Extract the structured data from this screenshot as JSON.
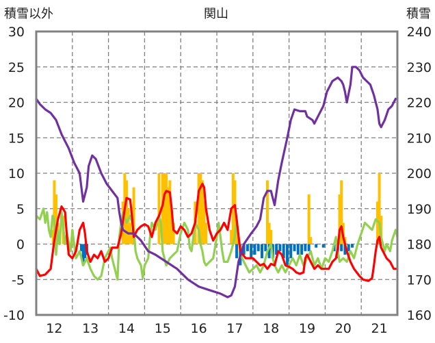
{
  "chart_data": {
    "type": "line",
    "title": "関山",
    "ylabel_left": "積雪以外",
    "ylabel_right": "積雪",
    "ylim_left": [
      -10,
      30
    ],
    "ylim_right": [
      160,
      240
    ],
    "yticks_left": [
      "30",
      "25",
      "20",
      "15",
      "10",
      "5",
      "0",
      "-5",
      "-10"
    ],
    "yticks_right": [
      "240",
      "230",
      "220",
      "210",
      "200",
      "190",
      "180",
      "170",
      "160"
    ],
    "xlim": [
      11.5,
      21.5
    ],
    "xticks": [
      "12",
      "13",
      "14",
      "15",
      "16",
      "17",
      "18",
      "19",
      "20",
      "21"
    ],
    "grid": true,
    "colors": {
      "snow_depth": "#7030a0",
      "temperature": "#ff0000",
      "green_series": "#92d050",
      "precip_bars": "#ffc000",
      "snow_change_bars": "#0070c0",
      "border": "#808080",
      "grid": "#7f7f7f"
    },
    "snow_depth": [
      [
        11.5,
        221
      ],
      [
        11.6,
        219.5
      ],
      [
        11.75,
        218
      ],
      [
        11.9,
        217
      ],
      [
        12.05,
        215
      ],
      [
        12.2,
        211
      ],
      [
        12.4,
        207
      ],
      [
        12.55,
        203
      ],
      [
        12.7,
        200
      ],
      [
        12.75,
        196
      ],
      [
        12.8,
        192
      ],
      [
        12.9,
        196
      ],
      [
        12.95,
        202
      ],
      [
        13.05,
        205
      ],
      [
        13.15,
        204
      ],
      [
        13.3,
        200
      ],
      [
        13.45,
        197
      ],
      [
        13.6,
        195
      ],
      [
        13.75,
        193
      ],
      [
        13.8,
        189
      ],
      [
        13.85,
        186
      ],
      [
        13.9,
        184
      ],
      [
        14.05,
        183
      ],
      [
        14.2,
        183
      ],
      [
        14.4,
        181
      ],
      [
        14.6,
        178
      ],
      [
        14.8,
        177
      ],
      [
        15.1,
        175
      ],
      [
        15.4,
        173
      ],
      [
        15.7,
        170
      ],
      [
        16.0,
        168
      ],
      [
        16.3,
        167
      ],
      [
        16.6,
        166
      ],
      [
        16.8,
        165
      ],
      [
        16.9,
        165.5
      ],
      [
        17.0,
        168
      ],
      [
        17.1,
        175
      ],
      [
        17.25,
        180
      ],
      [
        17.45,
        183
      ],
      [
        17.6,
        185
      ],
      [
        17.7,
        187
      ],
      [
        17.75,
        190
      ],
      [
        17.8,
        193
      ],
      [
        17.9,
        195
      ],
      [
        18.0,
        195
      ],
      [
        18.05,
        193
      ],
      [
        18.1,
        191
      ],
      [
        18.2,
        198
      ],
      [
        18.3,
        203
      ],
      [
        18.45,
        210
      ],
      [
        18.55,
        215
      ],
      [
        18.65,
        218
      ],
      [
        18.8,
        217.5
      ],
      [
        18.95,
        217.5
      ],
      [
        19.0,
        216
      ],
      [
        19.15,
        215
      ],
      [
        19.2,
        214
      ],
      [
        19.3,
        216
      ],
      [
        19.45,
        219
      ],
      [
        19.55,
        223
      ],
      [
        19.7,
        226
      ],
      [
        19.85,
        227
      ],
      [
        19.95,
        226
      ],
      [
        20.0,
        225
      ],
      [
        20.05,
        223
      ],
      [
        20.1,
        220
      ],
      [
        20.2,
        225
      ],
      [
        20.25,
        230
      ],
      [
        20.35,
        230
      ],
      [
        20.45,
        229
      ],
      [
        20.55,
        227
      ],
      [
        20.65,
        226
      ],
      [
        20.75,
        225
      ],
      [
        20.85,
        222
      ],
      [
        20.95,
        218
      ],
      [
        21.0,
        214
      ],
      [
        21.05,
        213
      ],
      [
        21.15,
        215
      ],
      [
        21.25,
        218
      ],
      [
        21.35,
        219
      ],
      [
        21.45,
        221
      ]
    ],
    "temperature": [
      [
        11.5,
        -3.5
      ],
      [
        11.6,
        -4.5
      ],
      [
        11.75,
        -4.3
      ],
      [
        11.9,
        -3.5
      ],
      [
        12.0,
        0.5
      ],
      [
        12.1,
        3.5
      ],
      [
        12.2,
        5.3
      ],
      [
        12.3,
        4.5
      ],
      [
        12.35,
        1
      ],
      [
        12.4,
        -1.5
      ],
      [
        12.5,
        -2
      ],
      [
        12.6,
        -1
      ],
      [
        12.7,
        2
      ],
      [
        12.8,
        3
      ],
      [
        12.85,
        1.5
      ],
      [
        12.9,
        -1
      ],
      [
        13.0,
        -2.5
      ],
      [
        13.1,
        -1.5
      ],
      [
        13.2,
        -2
      ],
      [
        13.3,
        -1
      ],
      [
        13.4,
        -2.5
      ],
      [
        13.5,
        -2
      ],
      [
        13.6,
        -0.5
      ],
      [
        13.75,
        -0.5
      ],
      [
        13.85,
        1.5
      ],
      [
        13.95,
        5
      ],
      [
        14.0,
        6.5
      ],
      [
        14.1,
        6.3
      ],
      [
        14.15,
        4
      ],
      [
        14.2,
        1
      ],
      [
        14.3,
        2
      ],
      [
        14.4,
        2.5
      ],
      [
        14.5,
        2.8
      ],
      [
        14.6,
        2.5
      ],
      [
        14.7,
        1
      ],
      [
        14.8,
        3
      ],
      [
        14.9,
        4
      ],
      [
        15.0,
        5.5
      ],
      [
        15.05,
        7
      ],
      [
        15.1,
        7.5
      ],
      [
        15.2,
        7.3
      ],
      [
        15.25,
        5
      ],
      [
        15.3,
        2
      ],
      [
        15.4,
        1.5
      ],
      [
        15.5,
        2.5
      ],
      [
        15.6,
        2
      ],
      [
        15.7,
        1
      ],
      [
        15.8,
        1.5
      ],
      [
        15.9,
        3
      ],
      [
        16.0,
        7.5
      ],
      [
        16.1,
        8.5
      ],
      [
        16.15,
        8
      ],
      [
        16.2,
        5
      ],
      [
        16.3,
        2
      ],
      [
        16.4,
        0.5
      ],
      [
        16.5,
        1.5
      ],
      [
        16.6,
        2
      ],
      [
        16.7,
        3
      ],
      [
        16.8,
        2
      ],
      [
        16.9,
        5
      ],
      [
        17.0,
        5.5
      ],
      [
        17.05,
        3.5
      ],
      [
        17.15,
        -1
      ],
      [
        17.3,
        -2
      ],
      [
        17.5,
        -2
      ],
      [
        17.6,
        -2.5
      ],
      [
        17.7,
        -3
      ],
      [
        17.8,
        -2.8
      ],
      [
        17.9,
        -3.5
      ],
      [
        18.0,
        -2.8
      ],
      [
        18.1,
        -3
      ],
      [
        18.2,
        -1
      ],
      [
        18.3,
        -1.5
      ],
      [
        18.4,
        -3
      ],
      [
        18.5,
        -3.2
      ],
      [
        18.6,
        -3.5
      ],
      [
        18.7,
        -4
      ],
      [
        18.8,
        -4.2
      ],
      [
        18.9,
        -4
      ],
      [
        18.95,
        -2
      ],
      [
        19.0,
        -1.5
      ],
      [
        19.1,
        -2.5
      ],
      [
        19.2,
        -3.5
      ],
      [
        19.3,
        -3
      ],
      [
        19.4,
        -3.5
      ],
      [
        19.6,
        -3.5
      ],
      [
        19.7,
        -2.5
      ],
      [
        19.8,
        -2
      ],
      [
        19.85,
        -0.5
      ],
      [
        19.9,
        2
      ],
      [
        19.95,
        2.5
      ],
      [
        20.0,
        1
      ],
      [
        20.1,
        -1
      ],
      [
        20.2,
        -2.5
      ],
      [
        20.3,
        -3.5
      ],
      [
        20.45,
        -4.5
      ],
      [
        20.55,
        -5
      ],
      [
        20.7,
        -5.2
      ],
      [
        20.8,
        -4.8
      ],
      [
        20.85,
        -3
      ],
      [
        20.9,
        -1
      ],
      [
        20.95,
        0.5
      ],
      [
        21.0,
        1
      ],
      [
        21.05,
        -0.5
      ],
      [
        21.1,
        -1
      ],
      [
        21.2,
        -2
      ],
      [
        21.3,
        -2.5
      ],
      [
        21.4,
        -3.5
      ],
      [
        21.5,
        -3.5
      ]
    ],
    "green_series": [
      [
        11.5,
        4
      ],
      [
        11.6,
        3.5
      ],
      [
        11.7,
        5
      ],
      [
        11.75,
        3
      ],
      [
        11.8,
        4.5
      ],
      [
        11.85,
        2
      ],
      [
        11.9,
        1
      ],
      [
        11.95,
        4
      ],
      [
        12.0,
        3.5
      ],
      [
        12.05,
        -1.5
      ],
      [
        12.1,
        2
      ],
      [
        12.15,
        0
      ],
      [
        12.2,
        4.5
      ],
      [
        12.3,
        0
      ],
      [
        12.35,
        1.5
      ],
      [
        12.45,
        -1
      ],
      [
        12.5,
        2
      ],
      [
        12.55,
        0
      ],
      [
        12.6,
        -2
      ],
      [
        12.7,
        -1
      ],
      [
        12.8,
        -3
      ],
      [
        12.9,
        -2
      ],
      [
        13.0,
        -3.5
      ],
      [
        13.1,
        -4.5
      ],
      [
        13.2,
        -5
      ],
      [
        13.3,
        -4.5
      ],
      [
        13.4,
        -2
      ],
      [
        13.5,
        -1
      ],
      [
        13.55,
        -0.5
      ],
      [
        13.6,
        -2
      ],
      [
        13.7,
        -4
      ],
      [
        13.75,
        -5
      ],
      [
        13.8,
        1
      ],
      [
        13.85,
        3
      ],
      [
        13.9,
        4.5
      ],
      [
        14.0,
        3
      ],
      [
        14.1,
        4
      ],
      [
        14.2,
        2
      ],
      [
        14.25,
        -1
      ],
      [
        14.3,
        -2
      ],
      [
        14.4,
        -3
      ],
      [
        14.45,
        -4.8
      ],
      [
        14.5,
        -3
      ],
      [
        14.6,
        -2
      ],
      [
        14.65,
        1
      ],
      [
        14.7,
        3
      ],
      [
        14.8,
        2
      ],
      [
        14.9,
        4
      ],
      [
        14.95,
        3
      ],
      [
        15.0,
        -1
      ],
      [
        15.05,
        -2
      ],
      [
        15.1,
        -3
      ],
      [
        15.2,
        -2
      ],
      [
        15.3,
        -1.5
      ],
      [
        15.4,
        -1
      ],
      [
        15.5,
        1.5
      ],
      [
        15.6,
        3
      ],
      [
        15.7,
        2
      ],
      [
        15.75,
        -0.5
      ],
      [
        15.8,
        -1
      ],
      [
        15.85,
        1
      ],
      [
        15.9,
        3
      ],
      [
        16.0,
        2
      ],
      [
        16.05,
        0
      ],
      [
        16.1,
        -1
      ],
      [
        16.15,
        -2.5
      ],
      [
        16.2,
        -3
      ],
      [
        16.3,
        -2.5
      ],
      [
        16.4,
        -2
      ],
      [
        16.5,
        1
      ],
      [
        16.55,
        3
      ],
      [
        16.6,
        1
      ],
      [
        16.65,
        -1
      ],
      [
        16.7,
        -2.5
      ],
      [
        16.8,
        -2.5
      ],
      [
        16.9,
        -1
      ],
      [
        17.0,
        1
      ],
      [
        17.05,
        3.5
      ],
      [
        17.1,
        1
      ],
      [
        17.2,
        -2
      ],
      [
        17.3,
        -3
      ],
      [
        17.4,
        -4
      ],
      [
        17.5,
        -3.5
      ],
      [
        17.6,
        -3
      ],
      [
        17.7,
        -4
      ],
      [
        17.8,
        -3
      ],
      [
        17.9,
        -1
      ],
      [
        18.0,
        0
      ],
      [
        18.05,
        -2
      ],
      [
        18.1,
        -3
      ],
      [
        18.2,
        -4
      ],
      [
        18.3,
        -3
      ],
      [
        18.4,
        -4
      ],
      [
        18.5,
        -3
      ],
      [
        18.6,
        -2
      ],
      [
        18.7,
        -3
      ],
      [
        18.8,
        -1.5
      ],
      [
        18.9,
        -3
      ],
      [
        19.0,
        -2
      ],
      [
        19.1,
        -1
      ],
      [
        19.2,
        -3
      ],
      [
        19.3,
        -2
      ],
      [
        19.4,
        -3.5
      ],
      [
        19.5,
        -2
      ],
      [
        19.6,
        -2.5
      ],
      [
        19.7,
        -1
      ],
      [
        19.8,
        1
      ],
      [
        19.85,
        -1
      ],
      [
        19.9,
        -2.5
      ],
      [
        20.0,
        -2
      ],
      [
        20.1,
        -2.5
      ],
      [
        20.2,
        -1
      ],
      [
        20.3,
        -2
      ],
      [
        20.4,
        0
      ],
      [
        20.5,
        1.5
      ],
      [
        20.6,
        3
      ],
      [
        20.7,
        2.5
      ],
      [
        20.8,
        2
      ],
      [
        20.9,
        3.5
      ],
      [
        21.0,
        3
      ],
      [
        21.05,
        1
      ],
      [
        21.1,
        0
      ],
      [
        21.15,
        -1
      ],
      [
        21.2,
        0
      ],
      [
        21.3,
        -1
      ],
      [
        21.35,
        0.5
      ],
      [
        21.45,
        2
      ],
      [
        21.5,
        1
      ]
    ],
    "precip_bars": [
      [
        11.97,
        2
      ],
      [
        12.0,
        9
      ],
      [
        12.05,
        7
      ],
      [
        12.1,
        3
      ],
      [
        12.25,
        4
      ],
      [
        12.5,
        2
      ],
      [
        13.9,
        6
      ],
      [
        13.95,
        10
      ],
      [
        14.0,
        9
      ],
      [
        14.05,
        5
      ],
      [
        14.1,
        3
      ],
      [
        14.15,
        2
      ],
      [
        14.2,
        8
      ],
      [
        14.9,
        10
      ],
      [
        15.0,
        10
      ],
      [
        15.05,
        10
      ],
      [
        15.1,
        10
      ],
      [
        15.15,
        8
      ],
      [
        15.2,
        9
      ],
      [
        15.25,
        4
      ],
      [
        15.3,
        3
      ],
      [
        15.9,
        6
      ],
      [
        16.0,
        10
      ],
      [
        16.05,
        10
      ],
      [
        16.1,
        9
      ],
      [
        16.15,
        6
      ],
      [
        16.2,
        3
      ],
      [
        16.9,
        2
      ],
      [
        16.95,
        10
      ],
      [
        17.0,
        9
      ],
      [
        17.05,
        3
      ],
      [
        17.1,
        1
      ],
      [
        17.9,
        9
      ],
      [
        17.95,
        3
      ],
      [
        18.0,
        2
      ],
      [
        19.05,
        7
      ],
      [
        19.1,
        1
      ],
      [
        19.9,
        7
      ],
      [
        19.95,
        9
      ],
      [
        20.0,
        3
      ],
      [
        20.05,
        1
      ],
      [
        20.95,
        6
      ],
      [
        21.0,
        10
      ],
      [
        21.05,
        4
      ]
    ],
    "snow_change_bars": [
      [
        12.75,
        -1
      ],
      [
        12.8,
        -3
      ],
      [
        12.85,
        -2
      ],
      [
        12.9,
        -1.5
      ],
      [
        17.05,
        -2
      ],
      [
        17.15,
        -3
      ],
      [
        17.25,
        -1.5
      ],
      [
        17.35,
        -1
      ],
      [
        17.45,
        -2
      ],
      [
        17.55,
        -1.5
      ],
      [
        17.65,
        -1
      ],
      [
        17.75,
        -2
      ],
      [
        17.85,
        -1
      ],
      [
        17.95,
        -2
      ],
      [
        18.05,
        -2
      ],
      [
        18.15,
        -1.5
      ],
      [
        18.25,
        -1
      ],
      [
        18.35,
        -2
      ],
      [
        18.45,
        -3
      ],
      [
        18.55,
        -2
      ],
      [
        18.65,
        -1
      ],
      [
        18.75,
        -1.5
      ],
      [
        18.85,
        -1.5
      ],
      [
        18.95,
        -1
      ],
      [
        19.05,
        -1
      ],
      [
        19.25,
        -0.5
      ],
      [
        19.45,
        -0.5
      ],
      [
        19.75,
        -1
      ],
      [
        19.85,
        -2
      ],
      [
        19.95,
        -1
      ],
      [
        20.05,
        -1.5
      ],
      [
        20.15,
        -1
      ],
      [
        20.25,
        -0.5
      ]
    ]
  }
}
